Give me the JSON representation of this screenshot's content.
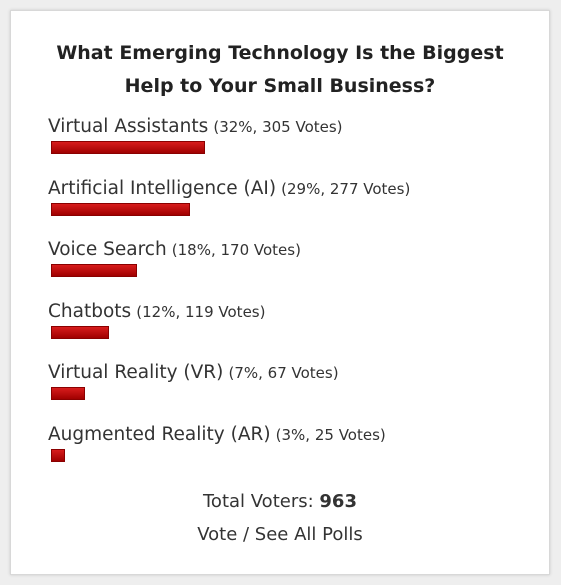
{
  "chart_data": {
    "type": "bar",
    "title": "What Emerging Technology Is the Biggest Help to Your Small Business?",
    "categories": [
      "Virtual Assistants",
      "Artificial Intelligence (AI)",
      "Voice Search",
      "Chatbots",
      "Virtual Reality (VR)",
      "Augmented Reality (AR)"
    ],
    "values": [
      32,
      29,
      18,
      12,
      7,
      3
    ],
    "value_labels": [
      "(32%, 305 Votes)",
      "(29%, 277 Votes)",
      "(18%, 170 Votes)",
      "(12%, 119 Votes)",
      "(7%, 67 Votes)",
      "(3%, 25 Votes)"
    ],
    "color": "#c00000",
    "total_label": "Total Voters:",
    "total": 963,
    "link": "Vote / See All Polls"
  }
}
